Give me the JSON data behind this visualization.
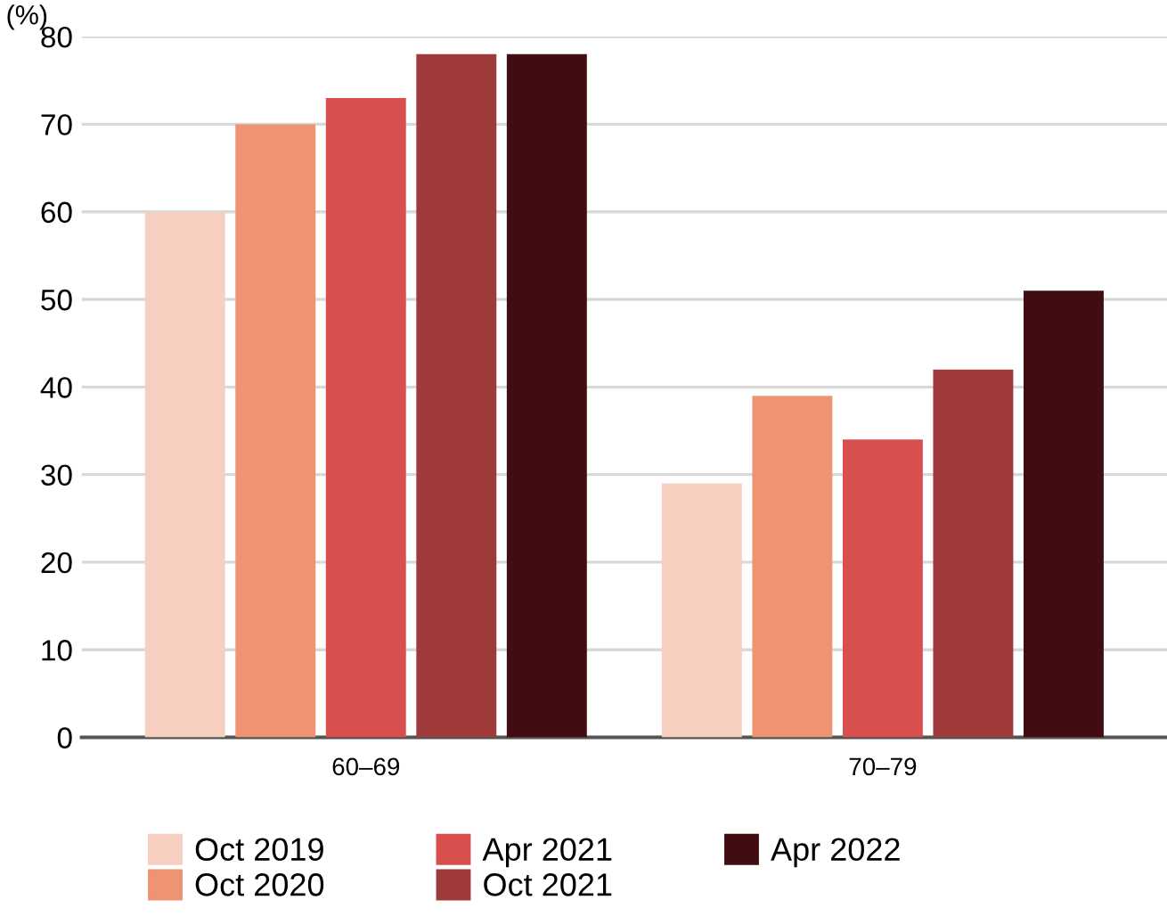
{
  "chart_data": {
    "type": "bar",
    "ylabel": "(%)",
    "categories": [
      "60–69",
      "70–79"
    ],
    "series": [
      {
        "name": "Oct 2019",
        "color": "#f7cfc0",
        "values": [
          60,
          29
        ]
      },
      {
        "name": "Oct 2020",
        "color": "#ee9473",
        "values": [
          70,
          39
        ]
      },
      {
        "name": "Apr 2021",
        "color": "#d8504e",
        "values": [
          73,
          34
        ]
      },
      {
        "name": "Oct 2021",
        "color": "#9e3a3a",
        "values": [
          78,
          42
        ]
      },
      {
        "name": "Apr 2022",
        "color": "#420d10",
        "values": [
          78,
          51
        ]
      }
    ],
    "ylim": [
      0,
      80
    ],
    "yticks": [
      0,
      10,
      20,
      30,
      40,
      50,
      60,
      70,
      80
    ],
    "grid": "y",
    "legend": "bottom"
  }
}
